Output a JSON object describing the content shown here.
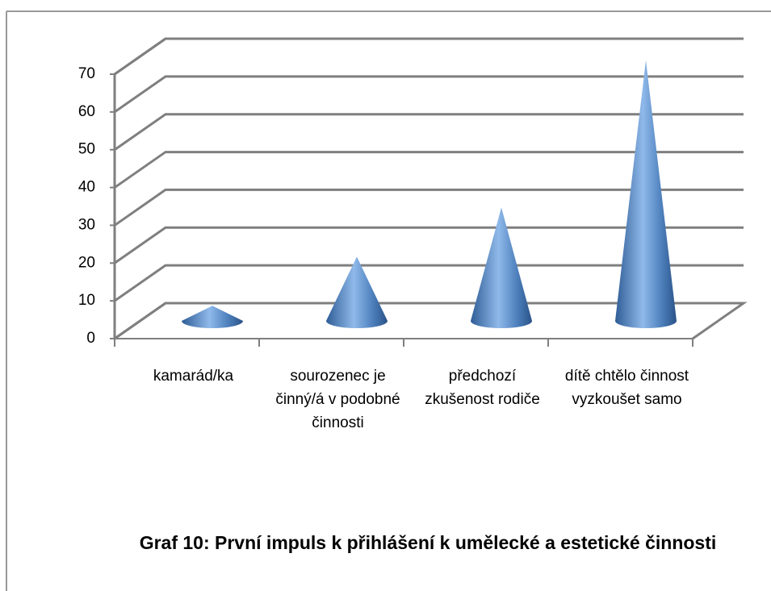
{
  "chart_data": {
    "type": "cone",
    "title": "Graf 10: První impuls k přihlášení k umělecké a estetické činnosti",
    "categories": [
      "kamarád/ka",
      "sourozenec je činný/á v podobné činnosti",
      "předchozí zkušenost rodiče",
      "dítě chtělo činnost vyzkoušet samo"
    ],
    "values": [
      4,
      17,
      30,
      69
    ],
    "color": "#4f81bd",
    "ylim": [
      0,
      70
    ],
    "yticks": [
      0,
      10,
      20,
      30,
      40,
      50,
      60,
      70
    ],
    "grid": true
  }
}
